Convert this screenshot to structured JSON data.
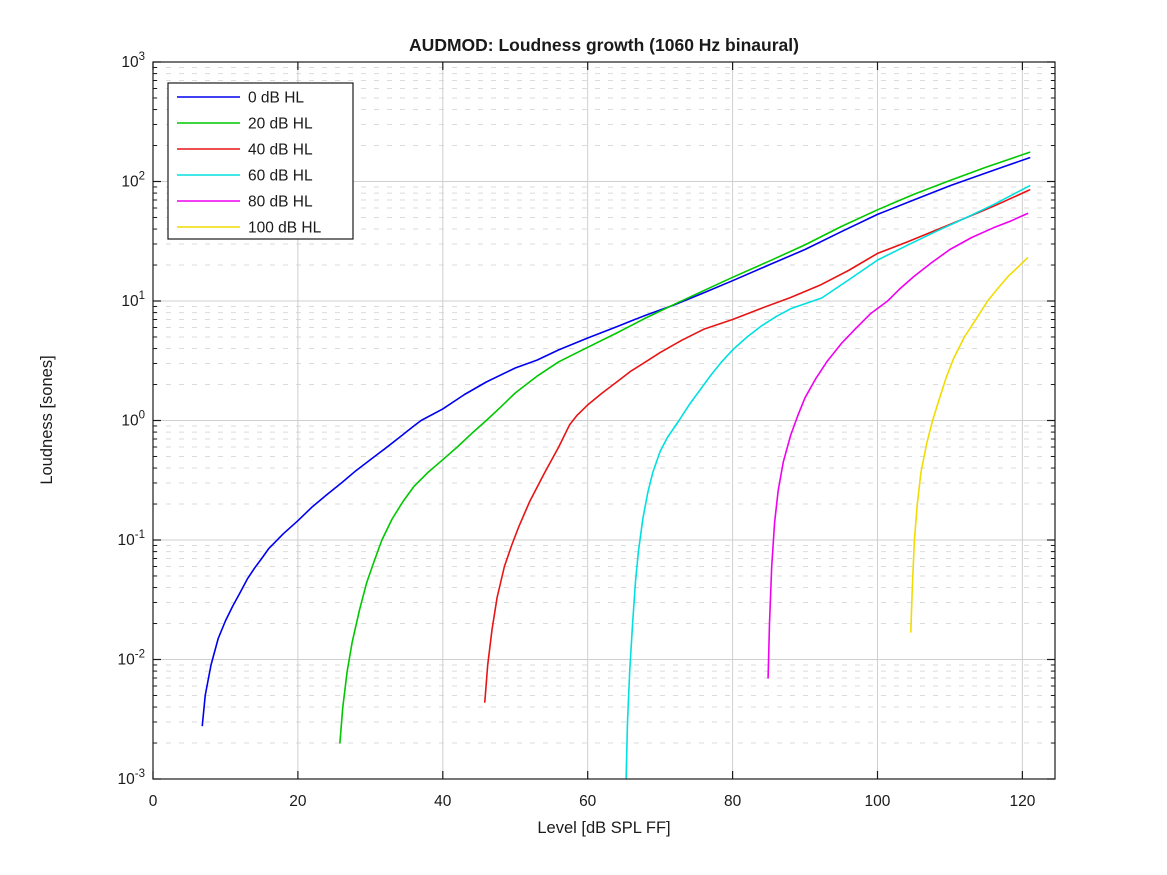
{
  "chart_data": {
    "type": "line",
    "title": "AUDMOD: Loudness growth (1060 Hz binaural)",
    "xlabel": "Level [dB SPL FF]",
    "ylabel": "Loudness [sones]",
    "x_ticks": [
      0,
      20,
      40,
      60,
      80,
      100,
      120
    ],
    "y_tick_exponents": [
      3,
      2,
      1,
      0,
      -1,
      -2,
      -3
    ],
    "xlim": [
      0,
      124.5
    ],
    "ylim_log10": [
      -3,
      3
    ],
    "grid": "major solid, minor dashed, log y",
    "legend_position": "top-left",
    "colors": {
      "axis": "#1a1a1a",
      "major_grid": "#cfcfcf",
      "minor_grid": "#dbdbdb",
      "legend_border": "#1a1a1a",
      "background": "#ffffff"
    },
    "series": [
      {
        "name": "0 dB HL",
        "color": "#0000f0",
        "points": [
          [
            6.8,
            0.0028
          ],
          [
            7.2,
            0.005
          ],
          [
            8,
            0.009
          ],
          [
            9,
            0.015
          ],
          [
            10,
            0.021
          ],
          [
            11,
            0.028
          ],
          [
            12,
            0.036
          ],
          [
            13,
            0.047
          ],
          [
            14,
            0.058
          ],
          [
            15,
            0.07
          ],
          [
            16,
            0.085
          ],
          [
            18,
            0.113
          ],
          [
            20,
            0.145
          ],
          [
            22,
            0.19
          ],
          [
            24,
            0.24
          ],
          [
            26,
            0.3
          ],
          [
            28,
            0.38
          ],
          [
            30,
            0.47
          ],
          [
            32,
            0.58
          ],
          [
            34,
            0.72
          ],
          [
            36,
            0.9
          ],
          [
            37,
            1.0
          ],
          [
            40,
            1.25
          ],
          [
            43,
            1.65
          ],
          [
            46,
            2.1
          ],
          [
            50,
            2.75
          ],
          [
            53,
            3.2
          ],
          [
            56,
            3.9
          ],
          [
            60,
            4.9
          ],
          [
            64,
            6.1
          ],
          [
            68,
            7.6
          ],
          [
            72,
            9.3
          ],
          [
            76,
            11.7
          ],
          [
            80,
            14.8
          ],
          [
            85,
            20
          ],
          [
            90,
            27
          ],
          [
            95,
            38
          ],
          [
            100,
            53
          ],
          [
            105,
            70
          ],
          [
            110,
            92
          ],
          [
            115,
            118
          ],
          [
            118,
            137
          ],
          [
            121,
            158
          ]
        ]
      },
      {
        "name": "20 dB HL",
        "color": "#00c800",
        "points": [
          [
            25.8,
            0.002
          ],
          [
            26.2,
            0.004
          ],
          [
            26.8,
            0.008
          ],
          [
            27.5,
            0.014
          ],
          [
            28.5,
            0.026
          ],
          [
            29.5,
            0.044
          ],
          [
            30.5,
            0.066
          ],
          [
            31.6,
            0.1
          ],
          [
            33,
            0.15
          ],
          [
            34.5,
            0.21
          ],
          [
            36,
            0.28
          ],
          [
            38,
            0.37
          ],
          [
            40,
            0.47
          ],
          [
            42,
            0.6
          ],
          [
            44,
            0.78
          ],
          [
            46,
            1.0
          ],
          [
            48,
            1.3
          ],
          [
            50,
            1.7
          ],
          [
            53,
            2.35
          ],
          [
            56,
            3.1
          ],
          [
            60,
            4.1
          ],
          [
            64,
            5.4
          ],
          [
            68,
            7.2
          ],
          [
            72,
            9.4
          ],
          [
            76,
            12.2
          ],
          [
            80,
            15.8
          ],
          [
            85,
            21.5
          ],
          [
            90,
            29.5
          ],
          [
            95,
            42
          ],
          [
            100,
            58
          ],
          [
            105,
            78
          ],
          [
            110,
            102
          ],
          [
            115,
            132
          ],
          [
            118,
            152
          ],
          [
            121,
            176
          ]
        ]
      },
      {
        "name": "40 dB HL",
        "color": "#e81414",
        "points": [
          [
            45.8,
            0.0044
          ],
          [
            46.2,
            0.009
          ],
          [
            46.8,
            0.018
          ],
          [
            47.5,
            0.033
          ],
          [
            48.5,
            0.06
          ],
          [
            49.5,
            0.09
          ],
          [
            50.5,
            0.13
          ],
          [
            52,
            0.21
          ],
          [
            54,
            0.36
          ],
          [
            56,
            0.6
          ],
          [
            57.5,
            0.92
          ],
          [
            58.5,
            1.1
          ],
          [
            60,
            1.35
          ],
          [
            62,
            1.7
          ],
          [
            64,
            2.1
          ],
          [
            66,
            2.6
          ],
          [
            68,
            3.1
          ],
          [
            70,
            3.7
          ],
          [
            73,
            4.7
          ],
          [
            76,
            5.8
          ],
          [
            80,
            7.0
          ],
          [
            84,
            8.7
          ],
          [
            88,
            10.7
          ],
          [
            92,
            13.5
          ],
          [
            96,
            18
          ],
          [
            100,
            25
          ],
          [
            104,
            31
          ],
          [
            108,
            39
          ],
          [
            112,
            49
          ],
          [
            116,
            62
          ],
          [
            121,
            85
          ]
        ]
      },
      {
        "name": "60 dB HL",
        "color": "#00e0e0",
        "points": [
          [
            65.3,
            0.001
          ],
          [
            65.5,
            0.003
          ],
          [
            65.8,
            0.008
          ],
          [
            66.2,
            0.02
          ],
          [
            66.6,
            0.045
          ],
          [
            67,
            0.08
          ],
          [
            67.6,
            0.15
          ],
          [
            68.3,
            0.25
          ],
          [
            69,
            0.37
          ],
          [
            70,
            0.55
          ],
          [
            71,
            0.72
          ],
          [
            72.6,
            1.0
          ],
          [
            74,
            1.35
          ],
          [
            75.5,
            1.8
          ],
          [
            77,
            2.4
          ],
          [
            78.5,
            3.1
          ],
          [
            80,
            3.9
          ],
          [
            82,
            5.0
          ],
          [
            84,
            6.2
          ],
          [
            86,
            7.4
          ],
          [
            88,
            8.6
          ],
          [
            90,
            9.5
          ],
          [
            92.3,
            10.6
          ],
          [
            96,
            15
          ],
          [
            100,
            22
          ],
          [
            104,
            29
          ],
          [
            108,
            38
          ],
          [
            112,
            49
          ],
          [
            116,
            64
          ],
          [
            121,
            92
          ]
        ]
      },
      {
        "name": "80 dB HL",
        "color": "#f000f0",
        "points": [
          [
            84.9,
            0.007
          ],
          [
            85.1,
            0.02
          ],
          [
            85.4,
            0.06
          ],
          [
            85.8,
            0.14
          ],
          [
            86.3,
            0.26
          ],
          [
            87,
            0.45
          ],
          [
            88,
            0.75
          ],
          [
            89,
            1.1
          ],
          [
            90,
            1.55
          ],
          [
            91.5,
            2.25
          ],
          [
            93,
            3.1
          ],
          [
            95,
            4.4
          ],
          [
            97,
            5.9
          ],
          [
            99,
            7.8
          ],
          [
            101.4,
            10
          ],
          [
            103,
            12.5
          ],
          [
            105,
            16
          ],
          [
            107.5,
            21
          ],
          [
            110,
            27
          ],
          [
            113,
            34
          ],
          [
            116,
            41
          ],
          [
            118.5,
            47
          ],
          [
            120.7,
            54
          ]
        ]
      },
      {
        "name": "100 dB HL",
        "color": "#f0dc00",
        "points": [
          [
            104.6,
            0.017
          ],
          [
            104.8,
            0.04
          ],
          [
            105.1,
            0.1
          ],
          [
            105.5,
            0.2
          ],
          [
            106,
            0.37
          ],
          [
            106.8,
            0.65
          ],
          [
            107.6,
            1.0
          ],
          [
            108.5,
            1.5
          ],
          [
            109.5,
            2.3
          ],
          [
            110.5,
            3.3
          ],
          [
            112,
            5.0
          ],
          [
            113.5,
            6.9
          ],
          [
            115.2,
            10
          ],
          [
            116.5,
            12.5
          ],
          [
            118,
            16
          ],
          [
            119.5,
            19.5
          ],
          [
            120.7,
            23
          ]
        ]
      }
    ]
  }
}
